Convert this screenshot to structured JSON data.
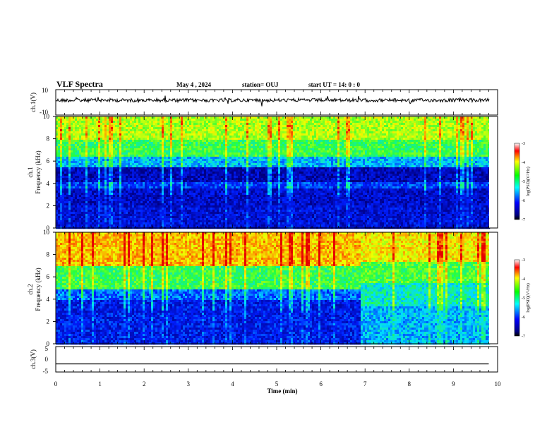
{
  "header": {
    "title": "VLF Spectra",
    "date": "May 4 , 2024",
    "station": "station= OUJ",
    "start": "start UT =  14: 0 : 0"
  },
  "chart_data": [
    {
      "id": "ch1-waveform",
      "type": "line",
      "ylabel": "ch.1(V)",
      "ylim": [
        -10,
        10
      ],
      "yticks": [
        "10",
        "-10"
      ],
      "xlim": [
        0,
        10
      ],
      "description_level": "noisy waveform around -0.5 V with occasional spikes"
    },
    {
      "id": "ch1-spectrogram",
      "type": "heatmap",
      "ylabel": "ch.1",
      "ylabel2": "Frequency (kHz)",
      "ylim": [
        0,
        10
      ],
      "yticks": [
        "0",
        "2",
        "4",
        "6",
        "8",
        "10"
      ],
      "xlim": [
        0,
        10
      ],
      "colorbar": {
        "label": "log(PSD)(V²/Hz)",
        "range": [
          -7,
          -3
        ],
        "ticks": [
          "-3",
          "-4",
          "-5",
          "-6",
          "-7"
        ]
      },
      "colorscale": [
        "#000080",
        "#0000ff",
        "#00ffff",
        "#00ff00",
        "#ffff00",
        "#ff0000"
      ]
    },
    {
      "id": "ch2-spectrogram",
      "type": "heatmap",
      "ylabel": "ch.2",
      "ylabel2": "Frequency (kHz)",
      "ylim": [
        0,
        10
      ],
      "yticks": [
        "0",
        "2",
        "4",
        "6",
        "8",
        "10"
      ],
      "xlim": [
        0,
        10
      ],
      "colorbar": {
        "label": "log(PSD)(V²/Hz)",
        "range": [
          -7,
          -3
        ],
        "ticks": [
          "-3",
          "-4",
          "-5",
          "-6",
          "-7"
        ]
      },
      "regime_change_min": 6.9
    },
    {
      "id": "ch3-waveform",
      "type": "line",
      "ylabel": "ch.3(V)",
      "ylim": [
        -5,
        5
      ],
      "yticks": [
        "5",
        "0",
        "-5"
      ],
      "xlim": [
        0,
        10
      ],
      "x": [
        0,
        9.8
      ],
      "y": [
        -1.8,
        -1.8
      ]
    }
  ],
  "xaxis": {
    "label": "Time (min)",
    "ticks": [
      "0",
      "1",
      "2",
      "3",
      "4",
      "5",
      "6",
      "7",
      "8",
      "9",
      "10"
    ]
  }
}
